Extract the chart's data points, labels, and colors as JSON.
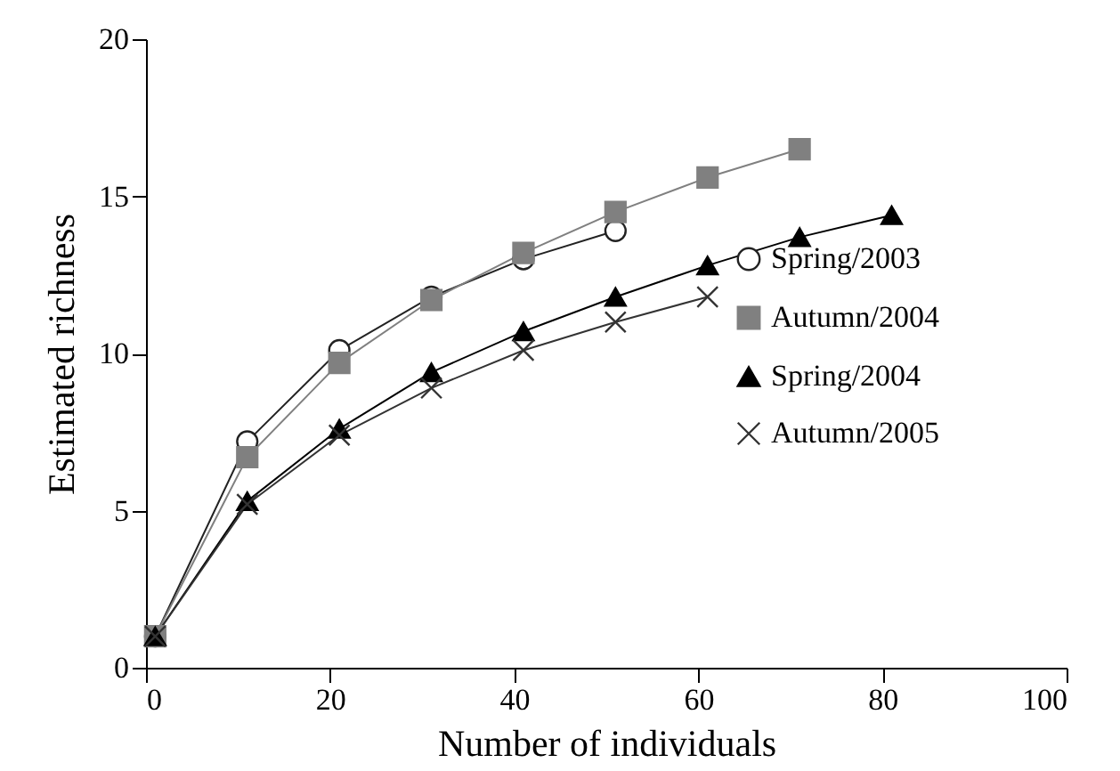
{
  "chart_data": {
    "type": "line",
    "xlabel": "Number of individuals",
    "ylabel": "Estimated richness",
    "xlim": [
      0,
      100
    ],
    "xticks": [
      0,
      20,
      40,
      60,
      80,
      100
    ],
    "ylim": [
      0,
      20
    ],
    "yticks": [
      0,
      5,
      10,
      15,
      20
    ],
    "grid": false,
    "legend": "right",
    "series": [
      {
        "name": "Spring/2003",
        "color": "#222222",
        "marker": "circle",
        "x": [
          1,
          11,
          21,
          31,
          41,
          51
        ],
        "values": [
          1,
          7.2,
          10.1,
          11.8,
          13.0,
          13.9
        ]
      },
      {
        "name": "Autumn/2004",
        "color": "#808080",
        "marker": "square",
        "x": [
          1,
          11,
          21,
          31,
          41,
          51,
          61,
          71
        ],
        "values": [
          1,
          6.7,
          9.7,
          11.7,
          13.2,
          14.5,
          15.6,
          16.5
        ]
      },
      {
        "name": "Spring/2004",
        "color": "#000000",
        "marker": "triangle",
        "x": [
          1,
          11,
          21,
          31,
          41,
          51,
          61,
          71,
          81
        ],
        "values": [
          1,
          5.3,
          7.6,
          9.4,
          10.7,
          11.8,
          12.8,
          13.7,
          14.4
        ]
      },
      {
        "name": "Autumn/2005",
        "color": "#333333",
        "marker": "cross",
        "x": [
          1,
          11,
          21,
          31,
          41,
          51,
          61
        ],
        "values": [
          1,
          5.2,
          7.4,
          8.9,
          10.1,
          11.0,
          11.8
        ]
      }
    ]
  }
}
